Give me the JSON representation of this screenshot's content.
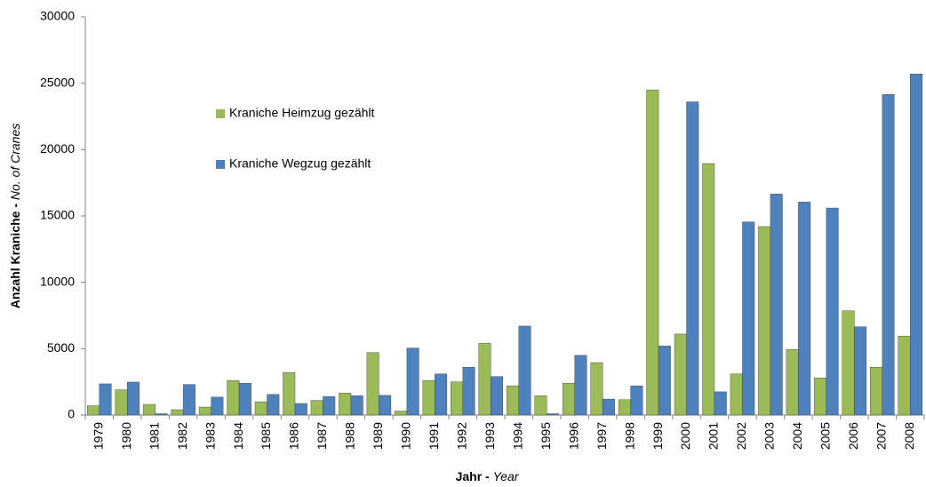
{
  "chart_data": {
    "type": "bar",
    "y_label": {
      "de": "Anzahl Kraniche - ",
      "en": "No. of Cranes"
    },
    "x_label": {
      "de": "Jahr - ",
      "en": "Year"
    },
    "categories": [
      "1979",
      "1980",
      "1981",
      "1982",
      "1983",
      "1984",
      "1985",
      "1986",
      "1987",
      "1988",
      "1989",
      "1990",
      "1991",
      "1992",
      "1993",
      "1994",
      "1995",
      "1996",
      "1997",
      "1998",
      "1999",
      "2000",
      "2001",
      "2002",
      "2003",
      "2004",
      "2005",
      "2006",
      "2007",
      "2008"
    ],
    "series": [
      {
        "name": "Kraniche Heimzug gezählt",
        "color": "#9bbb59",
        "values": [
          700,
          1900,
          800,
          400,
          600,
          2600,
          1000,
          3200,
          1100,
          1650,
          4700,
          300,
          2600,
          2500,
          5400,
          2200,
          1450,
          2400,
          3950,
          1150,
          24500,
          6100,
          18950,
          3100,
          14200,
          4950,
          2800,
          7850,
          3600,
          5950
        ]
      },
      {
        "name": "Kraniche Wegzug gezählt",
        "color": "#4f81bd",
        "values": [
          2350,
          2480,
          100,
          2300,
          1350,
          2400,
          1550,
          870,
          1400,
          1450,
          1480,
          5050,
          3100,
          3600,
          2900,
          6700,
          100,
          4500,
          1200,
          2200,
          5200,
          23600,
          1750,
          14550,
          16650,
          16050,
          15600,
          6650,
          24150,
          25700
        ]
      }
    ],
    "ylim": [
      0,
      30000
    ],
    "yticks": [
      0,
      5000,
      10000,
      15000,
      20000,
      25000,
      30000
    ],
    "grid": false
  }
}
